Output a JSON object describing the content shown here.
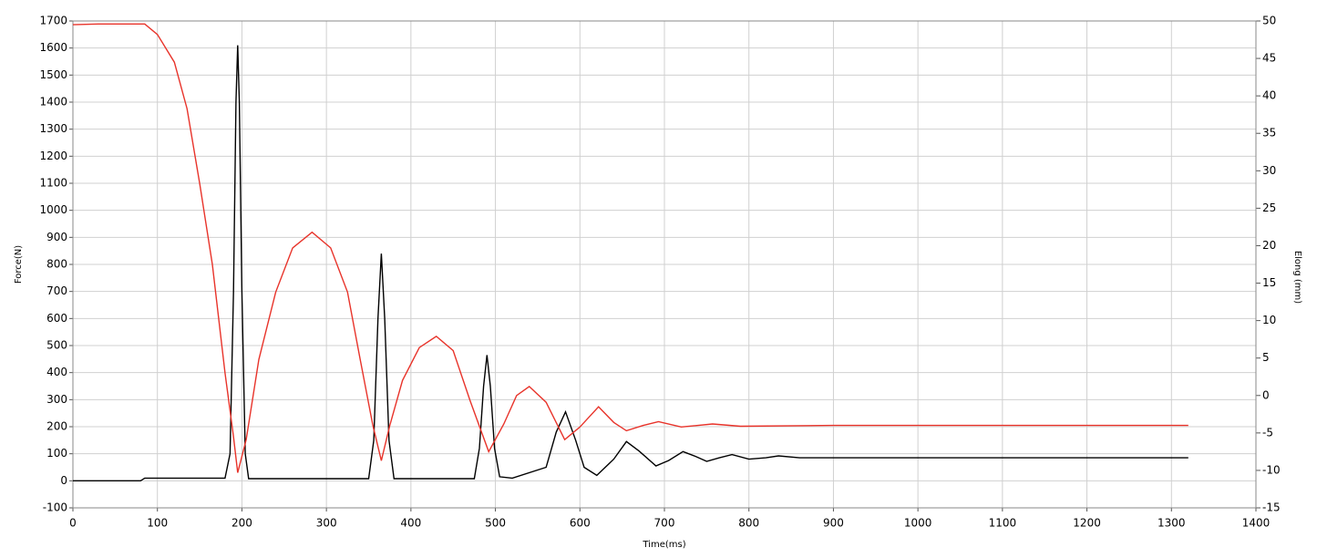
{
  "chart_data": {
    "type": "line",
    "x_label": "Time(ms)",
    "y_label": "Force(N)",
    "y2_label": "Elong (mm)",
    "xlim": [
      0,
      1400
    ],
    "xticks": [
      0,
      100,
      200,
      300,
      400,
      500,
      600,
      700,
      800,
      900,
      1000,
      1100,
      1200,
      1300,
      1400
    ],
    "ylim": [
      -100,
      1700
    ],
    "yticks": [
      -100,
      0,
      100,
      200,
      300,
      400,
      500,
      600,
      700,
      800,
      900,
      1000,
      1100,
      1200,
      1300,
      1400,
      1500,
      1600,
      1700
    ],
    "y2lim": [
      -15,
      50
    ],
    "y2ticks": [
      -15,
      -10,
      -5,
      0,
      5,
      10,
      15,
      20,
      25,
      30,
      35,
      40,
      45,
      50
    ],
    "grid": true,
    "series": [
      {
        "name": "Force",
        "color": "#000000",
        "x": [
          0,
          80,
          85,
          180,
          186,
          190,
          193,
          195,
          197,
          200,
          204,
          208,
          350,
          356,
          361,
          365,
          369,
          374,
          380,
          475,
          481,
          486,
          490,
          494,
          499,
          505,
          520,
          560,
          572,
          583,
          595,
          605,
          620,
          640,
          655,
          670,
          690,
          705,
          722,
          737,
          750,
          765,
          780,
          800,
          820,
          835,
          860,
          1320
        ],
        "values": [
          0,
          0,
          10,
          10,
          100,
          700,
          1400,
          1610,
          1400,
          700,
          100,
          8,
          8,
          150,
          600,
          840,
          600,
          150,
          8,
          8,
          120,
          350,
          465,
          350,
          120,
          15,
          10,
          50,
          180,
          255,
          150,
          50,
          20,
          80,
          145,
          110,
          55,
          75,
          108,
          90,
          72,
          85,
          97,
          80,
          85,
          92,
          85,
          85
        ]
      },
      {
        "name": "Elong",
        "color": "#e8332a",
        "axis": "y2",
        "x": [
          0,
          30,
          85,
          100,
          120,
          135,
          150,
          165,
          180,
          190,
          195,
          205,
          220,
          240,
          260,
          283,
          305,
          325,
          340,
          355,
          365,
          375,
          390,
          410,
          430,
          450,
          470,
          492,
          510,
          525,
          540,
          560,
          582,
          600,
          622,
          640,
          655,
          675,
          693,
          720,
          757,
          790,
          900,
          1000,
          1320
        ],
        "values": [
          49.5,
          49.6,
          49.6,
          48.2,
          44.5,
          38.3,
          28.3,
          17.5,
          3.0,
          -5.5,
          -10.3,
          -5.9,
          4.8,
          13.8,
          19.7,
          21.8,
          19.7,
          13.8,
          4.8,
          -4.0,
          -8.7,
          -4.0,
          2.0,
          6.4,
          7.9,
          6.0,
          -0.7,
          -7.5,
          -3.8,
          0,
          1.2,
          -0.9,
          -5.9,
          -4.2,
          -1.5,
          -3.6,
          -4.7,
          -4.0,
          -3.5,
          -4.2,
          -3.8,
          -4.1,
          -4.0,
          -4.0,
          -4.0
        ]
      }
    ]
  }
}
